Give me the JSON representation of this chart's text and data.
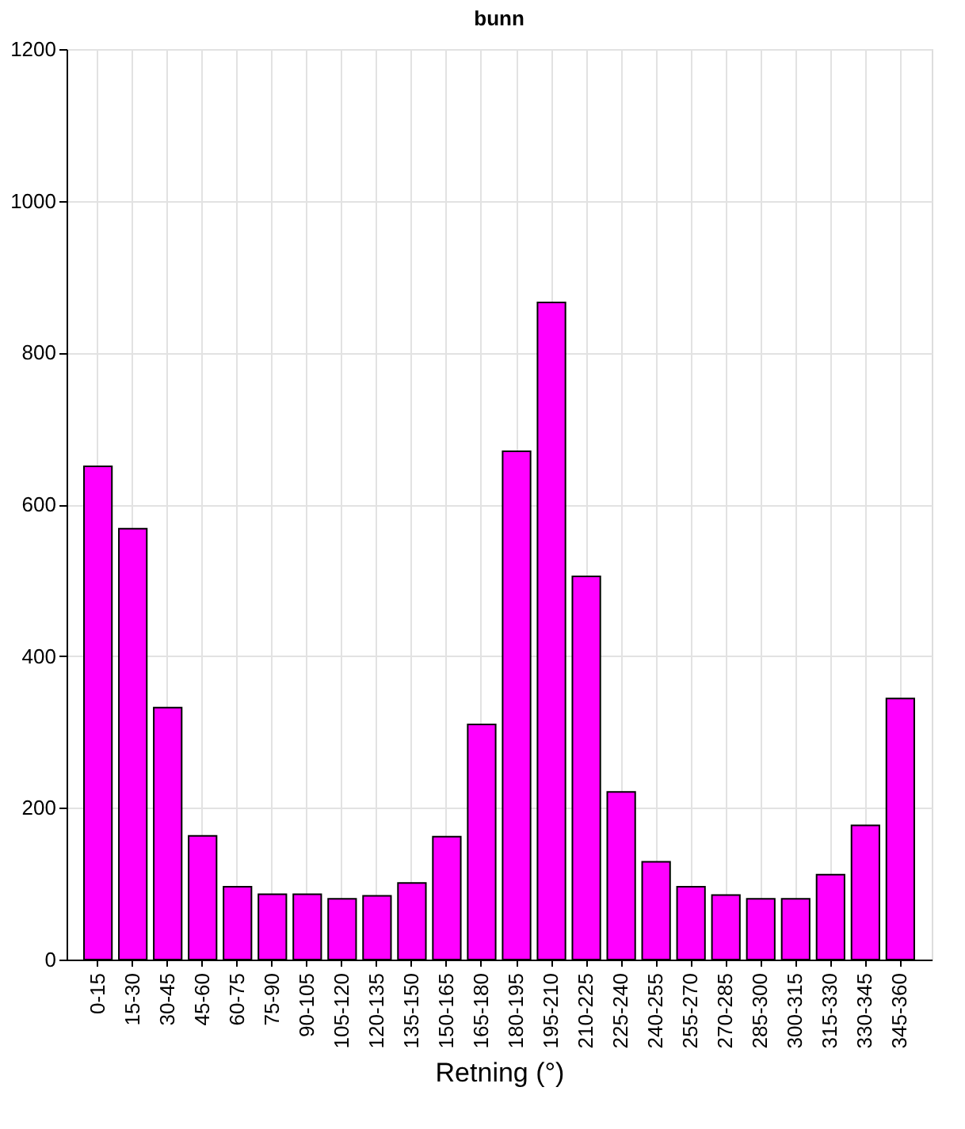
{
  "chart_data": {
    "type": "bar",
    "title": "bunn",
    "xlabel": "Retning (°)",
    "categories": [
      "0-15",
      "15-30",
      "30-45",
      "45-60",
      "60-75",
      "75-90",
      "90-105",
      "105-120",
      "120-135",
      "135-150",
      "150-165",
      "165-180",
      "180-195",
      "195-210",
      "210-225",
      "225-240",
      "240-255",
      "255-270",
      "270-285",
      "285-300",
      "300-315",
      "315-330",
      "330-345",
      "345-360"
    ],
    "values": [
      650,
      568,
      332,
      163,
      96,
      86,
      86,
      80,
      84,
      101,
      162,
      310,
      670,
      866,
      505,
      221,
      129,
      96,
      85,
      80,
      80,
      112,
      177,
      344
    ],
    "color": "#ff00ff",
    "ylim": [
      0,
      1200
    ],
    "yticks": [
      0,
      200,
      400,
      600,
      800,
      1000,
      1200
    ],
    "grid": true
  }
}
